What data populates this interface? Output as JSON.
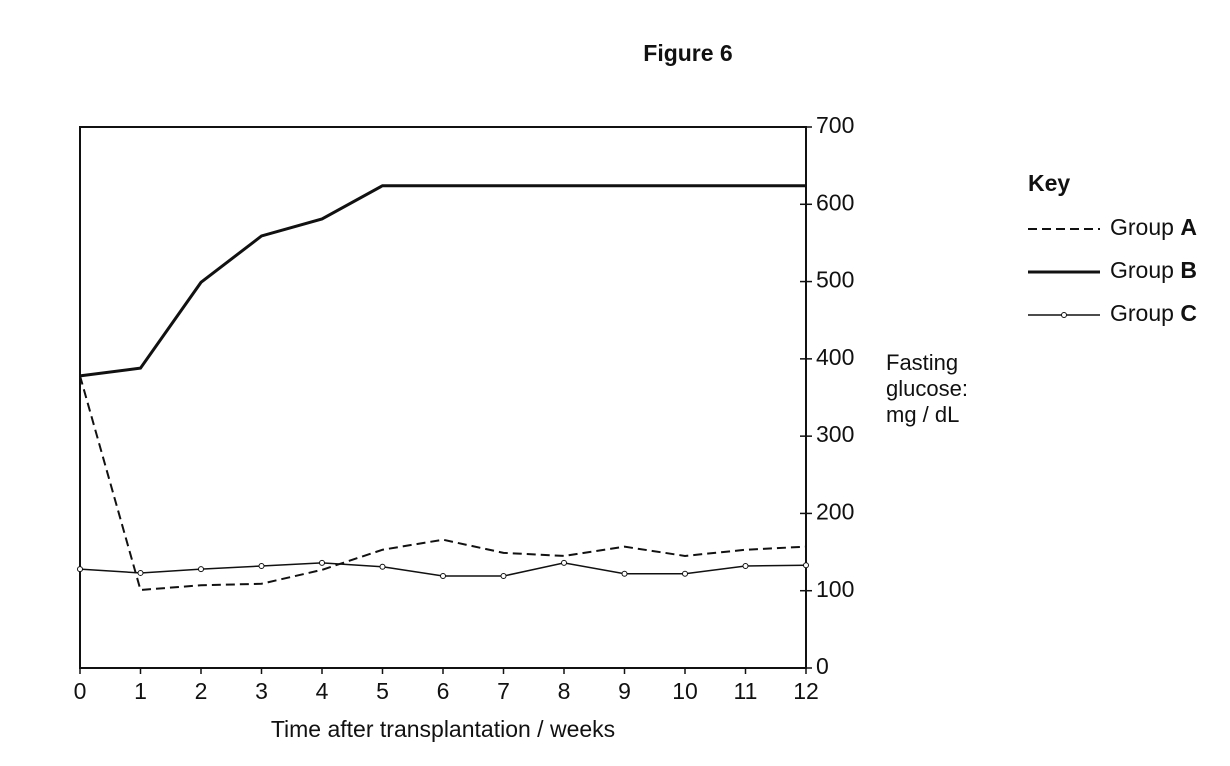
{
  "chart_data": {
    "type": "line",
    "title": "Figure 6",
    "x_label": "Time after transplantation / weeks",
    "y_label": "Fasting glucose: mg / dL",
    "legend_title": "Key",
    "x": [
      0,
      1,
      2,
      3,
      4,
      5,
      6,
      7,
      8,
      9,
      10,
      11,
      12
    ],
    "xlim": [
      0,
      12
    ],
    "xticks": [
      0,
      1,
      2,
      3,
      4,
      5,
      6,
      7,
      8,
      9,
      10,
      11,
      12
    ],
    "ylim": [
      0,
      700
    ],
    "yticks": [
      0,
      100,
      200,
      300,
      400,
      500,
      600,
      700
    ],
    "y_axis_side": "right",
    "grid": false,
    "legend": "right",
    "series": [
      {
        "name": "Group A",
        "color": "#111111",
        "line_style": "dashed",
        "values": [
          378,
          101,
          107,
          109,
          127,
          153,
          166,
          149,
          145,
          157,
          145,
          153,
          157
        ]
      },
      {
        "name": "Group B",
        "color": "#111111",
        "line_style": "thick",
        "values": [
          378,
          388,
          499,
          559,
          581,
          624,
          624,
          624,
          624,
          624,
          624,
          624,
          624
        ]
      },
      {
        "name": "Group C",
        "color": "#111111",
        "line_style": "marked",
        "values": [
          128,
          123,
          128,
          132,
          136,
          131,
          119,
          119,
          136,
          122,
          122,
          132,
          133
        ]
      }
    ]
  }
}
